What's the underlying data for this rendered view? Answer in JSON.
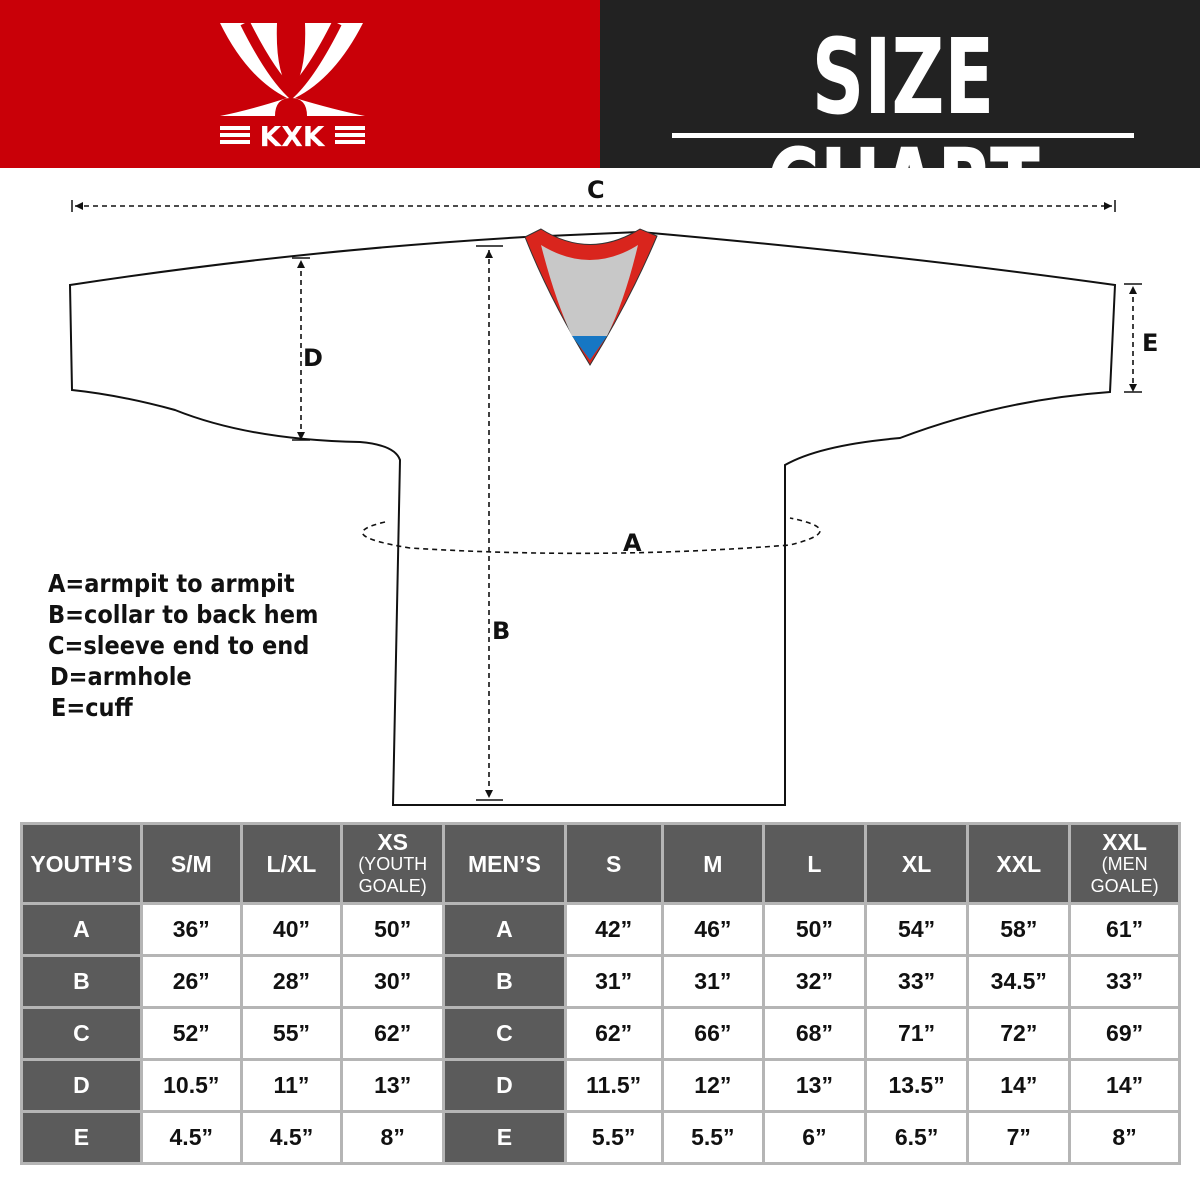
{
  "brand": {
    "name": "KXK",
    "color": "#c90008"
  },
  "title": "SIZE CHART",
  "diagram_labels": {
    "a": "A",
    "b": "B",
    "c": "C",
    "d": "D",
    "e": "E"
  },
  "legend": [
    "A=armpit to armpit",
    "B=collar to back hem",
    "C=sleeve end to end",
    "D=armhole",
    "E=cuff"
  ],
  "table": {
    "youth": {
      "header": "YOUTH’S",
      "sizes": [
        {
          "label": "S/M",
          "sub": ""
        },
        {
          "label": "L/XL",
          "sub": ""
        },
        {
          "label": "XS",
          "sub": "(YOUTH GOALE)"
        }
      ],
      "rows": [
        {
          "key": "A",
          "values": [
            "36”",
            "40”",
            "50”"
          ]
        },
        {
          "key": "B",
          "values": [
            "26”",
            "28”",
            "30”"
          ]
        },
        {
          "key": "C",
          "values": [
            "52”",
            "55”",
            "62”"
          ]
        },
        {
          "key": "D",
          "values": [
            "10.5”",
            "11”",
            "13”"
          ]
        },
        {
          "key": "E",
          "values": [
            "4.5”",
            "4.5”",
            "8”"
          ]
        }
      ]
    },
    "men": {
      "header": "MEN’S",
      "sizes": [
        {
          "label": "S",
          "sub": ""
        },
        {
          "label": "M",
          "sub": ""
        },
        {
          "label": "L",
          "sub": ""
        },
        {
          "label": "XL",
          "sub": ""
        },
        {
          "label": "XXL",
          "sub": ""
        },
        {
          "label": "XXL",
          "sub": "(MEN GOALE)"
        }
      ],
      "rows": [
        {
          "key": "A",
          "values": [
            "42”",
            "46”",
            "50”",
            "54”",
            "58”",
            "61”"
          ]
        },
        {
          "key": "B",
          "values": [
            "31”",
            "31”",
            "32”",
            "33”",
            "34.5”",
            "33”"
          ]
        },
        {
          "key": "C",
          "values": [
            "62”",
            "66”",
            "68”",
            "71”",
            "72”",
            "69”"
          ]
        },
        {
          "key": "D",
          "values": [
            "11.5”",
            "12”",
            "13”",
            "13.5”",
            "14”",
            "14”"
          ]
        },
        {
          "key": "E",
          "values": [
            "5.5”",
            "5.5”",
            "6”",
            "6.5”",
            "7”",
            "8”"
          ]
        }
      ]
    }
  }
}
